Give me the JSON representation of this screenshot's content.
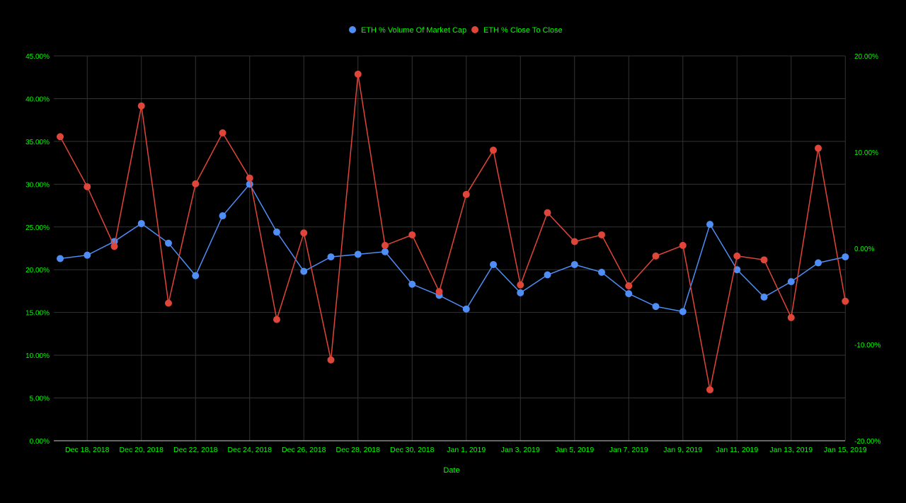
{
  "chart_data": {
    "type": "line",
    "title": "",
    "xlabel": "Date",
    "legend_position": "top",
    "grid": true,
    "text_color": "#00ff00",
    "background": "#000000",
    "grid_color": "#333333",
    "x_dates": [
      "Dec 17, 2018",
      "Dec 18, 2018",
      "Dec 19, 2018",
      "Dec 20, 2018",
      "Dec 21, 2018",
      "Dec 22, 2018",
      "Dec 23, 2018",
      "Dec 24, 2018",
      "Dec 25, 2018",
      "Dec 26, 2018",
      "Dec 27, 2018",
      "Dec 28, 2018",
      "Dec 29, 2018",
      "Dec 30, 2018",
      "Dec 31, 2018",
      "Jan 1, 2019",
      "Jan 2, 2019",
      "Jan 3, 2019",
      "Jan 4, 2019",
      "Jan 5, 2019",
      "Jan 6, 2019",
      "Jan 7, 2019",
      "Jan 8, 2019",
      "Jan 9, 2019",
      "Jan 10, 2019",
      "Jan 11, 2019",
      "Jan 12, 2019",
      "Jan 13, 2019",
      "Jan 14, 2019",
      "Jan 15, 2019"
    ],
    "x_tick_labels": [
      "Dec 18, 2018",
      "Dec 20, 2018",
      "Dec 22, 2018",
      "Dec 24, 2018",
      "Dec 26, 2018",
      "Dec 28, 2018",
      "Dec 30, 2018",
      "Jan 1, 2019",
      "Jan 3, 2019",
      "Jan 5, 2019",
      "Jan 7, 2019",
      "Jan 9, 2019",
      "Jan 11, 2019",
      "Jan 13, 2019",
      "Jan 15, 2019"
    ],
    "x_tick_indices": [
      1,
      3,
      5,
      7,
      9,
      11,
      13,
      15,
      17,
      19,
      21,
      23,
      25,
      27,
      29
    ],
    "y_left": {
      "range": [
        0,
        45
      ],
      "ticks": [
        0,
        5,
        10,
        15,
        20,
        25,
        30,
        35,
        40,
        45
      ],
      "tick_labels": [
        "0.00%",
        "5.00%",
        "10.00%",
        "15.00%",
        "20.00%",
        "25.00%",
        "30.00%",
        "35.00%",
        "40.00%",
        "45.00%"
      ]
    },
    "y_right": {
      "range": [
        -20,
        20
      ],
      "ticks": [
        -20,
        -10,
        0,
        10,
        20
      ],
      "tick_labels": [
        "-20.00%",
        "-10.00%",
        "0.00%",
        "10.00%",
        "20.00%"
      ]
    },
    "series": [
      {
        "name": "ETH % Volume Of Market Cap",
        "color": "#4f8ef7",
        "axis": "left",
        "values": [
          21.3,
          21.7,
          23.3,
          25.4,
          23.1,
          19.3,
          26.3,
          30.0,
          24.4,
          19.8,
          21.5,
          21.8,
          22.1,
          18.3,
          17.0,
          15.4,
          20.6,
          17.3,
          19.4,
          20.6,
          19.7,
          17.2,
          15.7,
          15.1,
          25.3,
          20.0,
          16.8,
          18.6,
          20.8,
          21.5
        ]
      },
      {
        "name": "ETH % Close To Close",
        "color": "#e0453a",
        "axis": "right",
        "values": [
          11.6,
          6.4,
          0.2,
          14.8,
          -5.7,
          6.7,
          12.0,
          7.3,
          -7.4,
          1.6,
          -11.6,
          18.1,
          0.3,
          1.4,
          -4.5,
          5.6,
          10.2,
          -3.8,
          3.7,
          0.7,
          1.4,
          -3.9,
          -0.8,
          0.3,
          -14.7,
          -0.8,
          -1.2,
          -7.2,
          10.4,
          -5.5
        ]
      }
    ]
  }
}
